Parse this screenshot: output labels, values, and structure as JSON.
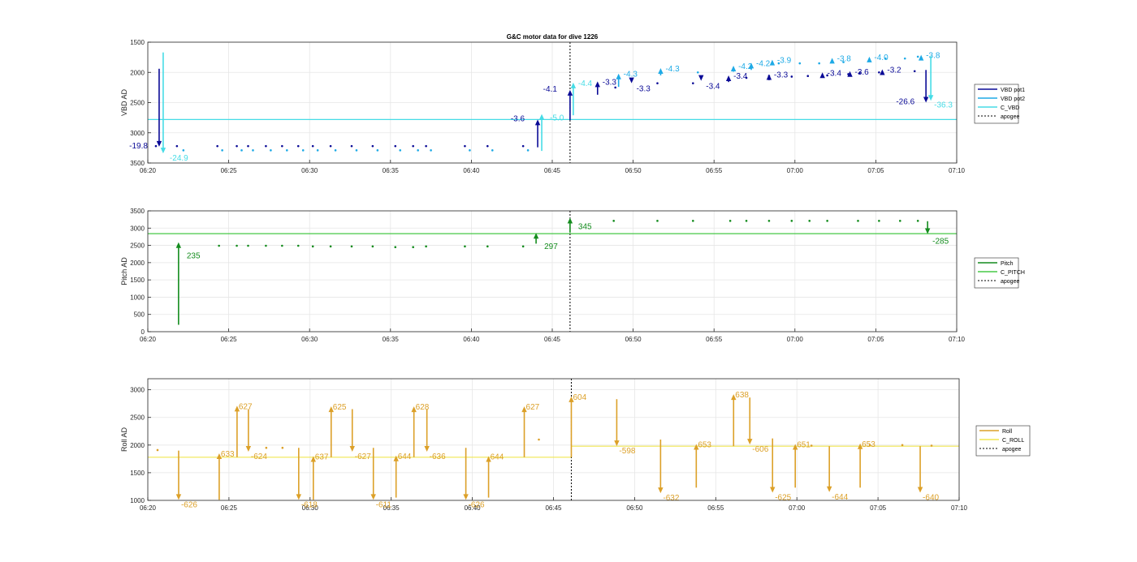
{
  "figure_title": "G&C motor data for dive 1226",
  "colors": {
    "vbd1": "#0a0a96",
    "vbd2": "#1eaae6",
    "cvbd": "#46dce6",
    "pitch": "#148c1e",
    "cpitch": "#46c846",
    "roll": "#dca028",
    "croll": "#f0e650",
    "apogee": "#000000"
  },
  "chart_data": [
    {
      "type": "scatter",
      "title": "G&C motor data for dive 1226",
      "ylabel": "VBD AD",
      "y_reversed": true,
      "ylim": [
        1500,
        3500
      ],
      "yticks": [
        "1500",
        "2000",
        "2500",
        "3000",
        "3500"
      ],
      "xlim": [
        "06:20",
        "07:10"
      ],
      "xticks": [
        "06:20",
        "06:25",
        "06:30",
        "06:35",
        "06:40",
        "06:45",
        "06:50",
        "06:55",
        "07:00",
        "07:05",
        "07:10"
      ],
      "grid": true,
      "legend": [
        "VBD pot1",
        "VBD pot2",
        "C_VBD",
        "apogee"
      ],
      "legend_position": "outside-right",
      "reference_lines": [
        {
          "name": "C_VBD",
          "y": 2780
        }
      ],
      "apogee_x": 26.1,
      "series": [
        {
          "name": "VBD pot1",
          "points": [
            [
              0.5,
              3220
            ],
            [
              1.8,
              3220
            ],
            [
              4.3,
              3220
            ],
            [
              5.5,
              3220
            ],
            [
              6.2,
              3220
            ],
            [
              7.3,
              3220
            ],
            [
              8.3,
              3220
            ],
            [
              9.3,
              3220
            ],
            [
              10.2,
              3220
            ],
            [
              11.3,
              3220
            ],
            [
              12.6,
              3220
            ],
            [
              13.9,
              3220
            ],
            [
              15.3,
              3220
            ],
            [
              16.4,
              3220
            ],
            [
              17.2,
              3220
            ],
            [
              19.6,
              3220
            ],
            [
              21.0,
              3220
            ],
            [
              23.2,
              3220
            ],
            [
              28.9,
              2250
            ],
            [
              31.5,
              2180
            ],
            [
              33.7,
              2180
            ],
            [
              35.9,
              2120
            ],
            [
              37.0,
              2090
            ],
            [
              38.4,
              2060
            ],
            [
              39.8,
              2070
            ],
            [
              40.8,
              2060
            ],
            [
              42.0,
              2050
            ],
            [
              43.3,
              2030
            ],
            [
              44.0,
              2010
            ],
            [
              45.2,
              2000
            ],
            [
              47.4,
              1980
            ]
          ]
        },
        {
          "name": "VBD pot2",
          "points": [
            [
              2.2,
              3290
            ],
            [
              4.6,
              3290
            ],
            [
              5.8,
              3290
            ],
            [
              6.5,
              3290
            ],
            [
              7.6,
              3290
            ],
            [
              8.6,
              3290
            ],
            [
              9.6,
              3290
            ],
            [
              10.5,
              3290
            ],
            [
              11.6,
              3290
            ],
            [
              12.9,
              3290
            ],
            [
              14.2,
              3290
            ],
            [
              15.6,
              3290
            ],
            [
              16.7,
              3290
            ],
            [
              17.5,
              3290
            ],
            [
              19.9,
              3290
            ],
            [
              21.3,
              3290
            ],
            [
              23.5,
              3290
            ],
            [
              39.0,
              1850
            ],
            [
              40.3,
              1850
            ],
            [
              41.5,
              1850
            ],
            [
              43.0,
              1830
            ],
            [
              44.6,
              1800
            ],
            [
              45.6,
              1770
            ],
            [
              46.8,
              1770
            ],
            [
              47.6,
              1740
            ],
            [
              34.0,
              2000
            ]
          ]
        }
      ],
      "moves": [
        {
          "series": "VBD pot1",
          "x": 0.7,
          "from": 1940,
          "to": 3230,
          "label": "-19.8"
        },
        {
          "series": "C_VBD",
          "x": 0.95,
          "from": 1670,
          "to": 3340,
          "label": "-24.9"
        },
        {
          "series": "VBD pot1",
          "x": 24.1,
          "from": 3240,
          "to": 2780,
          "label": "-3.6"
        },
        {
          "series": "C_VBD",
          "x": 24.35,
          "from": 3300,
          "to": 2690,
          "label": "-5.0"
        },
        {
          "series": "VBD pot1",
          "x": 26.1,
          "from": 2790,
          "to": 2290,
          "label": "-4.1"
        },
        {
          "series": "C_VBD",
          "x": 26.3,
          "from": 2710,
          "to": 2170,
          "label": "-4.4"
        },
        {
          "series": "VBD pot1",
          "x": 27.8,
          "from": 2370,
          "to": 2150,
          "label": "-3.3"
        },
        {
          "series": "VBD pot2",
          "x": 29.1,
          "from": 2240,
          "to": 2020,
          "label": "-4.3"
        },
        {
          "series": "VBD pot1",
          "x": 29.9,
          "from": 2180,
          "to": 2180,
          "label": "-3.3"
        },
        {
          "series": "VBD pot2",
          "x": 31.7,
          "from": 2050,
          "to": 1930,
          "label": "-4.3"
        },
        {
          "series": "VBD pot1",
          "x": 34.2,
          "from": 2140,
          "to": 2140,
          "label": "-3.4"
        },
        {
          "series": "VBD pot1",
          "x": 35.9,
          "from": 2160,
          "to": 2050,
          "label": "-3.4"
        },
        {
          "series": "VBD pot2",
          "x": 36.2,
          "from": 1990,
          "to": 1890,
          "label": "-4.2"
        },
        {
          "series": "VBD pot2",
          "x": 37.3,
          "from": 1960,
          "to": 1840,
          "label": "-4.2"
        },
        {
          "series": "VBD pot1",
          "x": 38.4,
          "from": 2130,
          "to": 2030,
          "label": "-3.3"
        },
        {
          "series": "VBD pot2",
          "x": 38.6,
          "from": 1880,
          "to": 1790,
          "label": "-3.9"
        },
        {
          "series": "VBD pot1",
          "x": 41.7,
          "from": 2080,
          "to": 2000,
          "label": "-3.4"
        },
        {
          "series": "VBD pot2",
          "x": 42.3,
          "from": 1840,
          "to": 1760,
          "label": "-3.8"
        },
        {
          "series": "VBD pot1",
          "x": 43.4,
          "from": 2060,
          "to": 1980,
          "label": "-3.6"
        },
        {
          "series": "VBD pot2",
          "x": 44.6,
          "from": 1820,
          "to": 1740,
          "label": "-4.0"
        },
        {
          "series": "VBD pot1",
          "x": 45.4,
          "from": 2030,
          "to": 1950,
          "label": "-3.2"
        },
        {
          "series": "VBD pot2",
          "x": 47.8,
          "from": 1790,
          "to": 1710,
          "label": "-3.8"
        },
        {
          "series": "VBD pot1",
          "x": 48.1,
          "from": 1960,
          "to": 2500,
          "label": "-26.6"
        },
        {
          "series": "C_VBD",
          "x": 48.4,
          "from": 1730,
          "to": 2470,
          "label": "-36.3"
        }
      ]
    },
    {
      "type": "scatter",
      "ylabel": "Pitch AD",
      "ylim": [
        0,
        3500
      ],
      "yticks": [
        "0",
        "500",
        "1000",
        "1500",
        "2000",
        "2500",
        "3000",
        "3500"
      ],
      "xlim": [
        "06:20",
        "07:10"
      ],
      "xticks": [
        "06:20",
        "06:25",
        "06:30",
        "06:35",
        "06:40",
        "06:45",
        "06:50",
        "06:55",
        "07:00",
        "07:05",
        "07:10"
      ],
      "grid": true,
      "legend": [
        "Pitch",
        "C_PITCH",
        "apogee"
      ],
      "legend_position": "outside-right",
      "reference_lines": [
        {
          "name": "C_PITCH",
          "y": 2840
        }
      ],
      "apogee_x": 26.1,
      "series": [
        {
          "name": "Pitch",
          "points": [
            [
              4.4,
              2490
            ],
            [
              5.5,
              2490
            ],
            [
              6.2,
              2490
            ],
            [
              7.3,
              2490
            ],
            [
              8.3,
              2490
            ],
            [
              9.3,
              2490
            ],
            [
              10.2,
              2470
            ],
            [
              11.3,
              2470
            ],
            [
              12.6,
              2470
            ],
            [
              13.9,
              2470
            ],
            [
              15.3,
              2450
            ],
            [
              16.4,
              2450
            ],
            [
              17.2,
              2470
            ],
            [
              19.6,
              2470
            ],
            [
              21.0,
              2470
            ],
            [
              23.2,
              2470
            ],
            [
              28.8,
              3210
            ],
            [
              31.5,
              3210
            ],
            [
              33.7,
              3210
            ],
            [
              36.0,
              3210
            ],
            [
              37.0,
              3210
            ],
            [
              38.4,
              3210
            ],
            [
              39.8,
              3210
            ],
            [
              40.9,
              3210
            ],
            [
              42.0,
              3210
            ],
            [
              43.9,
              3210
            ],
            [
              45.2,
              3210
            ],
            [
              46.5,
              3210
            ],
            [
              47.6,
              3210
            ]
          ]
        }
      ],
      "moves": [
        {
          "series": "Pitch",
          "x": 1.9,
          "from": 200,
          "to": 2590,
          "label": "235"
        },
        {
          "series": "Pitch",
          "x": 24.0,
          "from": 2550,
          "to": 2860,
          "label": "297"
        },
        {
          "series": "Pitch",
          "x": 26.1,
          "from": 2870,
          "to": 3300,
          "label": "345"
        },
        {
          "series": "Pitch",
          "x": 48.2,
          "from": 3200,
          "to": 2830,
          "label": "-285"
        }
      ]
    },
    {
      "type": "scatter",
      "ylabel": "Roll AD",
      "ylim": [
        1000,
        3200
      ],
      "yticks": [
        "1000",
        "1500",
        "2000",
        "2500",
        "3000"
      ],
      "xlim": [
        "06:20",
        "07:10"
      ],
      "xticks": [
        "06:20",
        "06:25",
        "06:30",
        "06:35",
        "06:40",
        "06:45",
        "06:50",
        "06:55",
        "07:00",
        "07:05",
        "07:10"
      ],
      "grid": true,
      "legend": [
        "Roll",
        "C_ROLL",
        "apogee"
      ],
      "legend_position": "outside-right",
      "reference_lines": [
        {
          "name": "C_ROLL",
          "y": 1780,
          "x_end": 26.1
        },
        {
          "name": "C_ROLL",
          "y": 1980,
          "x_start": 26.1
        }
      ],
      "apogee_x": 26.1,
      "series": [
        {
          "name": "Roll",
          "points": [
            [
              0.6,
              1910
            ],
            [
              7.3,
              1950
            ],
            [
              8.3,
              1950
            ],
            [
              24.1,
              2100
            ],
            [
              40.9,
              1990
            ],
            [
              44.5,
              2000
            ],
            [
              46.5,
              2000
            ],
            [
              48.3,
              1990
            ]
          ]
        }
      ],
      "moves": [
        {
          "series": "Roll",
          "x": 1.9,
          "from": 1900,
          "to": 1010,
          "label": "-626"
        },
        {
          "series": "Roll",
          "x": 4.4,
          "from": 1010,
          "to": 1850,
          "label": "633"
        },
        {
          "series": "Roll",
          "x": 5.5,
          "from": 1780,
          "to": 2710,
          "label": "627"
        },
        {
          "series": "Roll",
          "x": 6.2,
          "from": 2650,
          "to": 1880,
          "label": "-624"
        },
        {
          "series": "Roll",
          "x": 9.3,
          "from": 1950,
          "to": 1010,
          "label": "-618"
        },
        {
          "series": "Roll",
          "x": 10.2,
          "from": 1010,
          "to": 1800,
          "label": "637"
        },
        {
          "series": "Roll",
          "x": 11.3,
          "from": 1780,
          "to": 2700,
          "label": "625"
        },
        {
          "series": "Roll",
          "x": 12.6,
          "from": 2650,
          "to": 1880,
          "label": "-627"
        },
        {
          "series": "Roll",
          "x": 13.9,
          "from": 1950,
          "to": 1010,
          "label": "-611"
        },
        {
          "series": "Roll",
          "x": 15.3,
          "from": 1050,
          "to": 1810,
          "label": "644"
        },
        {
          "series": "Roll",
          "x": 16.4,
          "from": 1780,
          "to": 2700,
          "label": "628"
        },
        {
          "series": "Roll",
          "x": 17.2,
          "from": 2650,
          "to": 1880,
          "label": "-636"
        },
        {
          "series": "Roll",
          "x": 19.6,
          "from": 1950,
          "to": 1010,
          "label": "-626"
        },
        {
          "series": "Roll",
          "x": 21.0,
          "from": 1050,
          "to": 1800,
          "label": "644"
        },
        {
          "series": "Roll",
          "x": 23.2,
          "from": 1780,
          "to": 2700,
          "label": "627"
        },
        {
          "series": "Roll",
          "x": 26.1,
          "from": 1780,
          "to": 2880,
          "label": "604"
        },
        {
          "series": "Roll",
          "x": 28.9,
          "from": 2830,
          "to": 1980,
          "label": "-598"
        },
        {
          "series": "Roll",
          "x": 31.6,
          "from": 2100,
          "to": 1130,
          "label": "-632"
        },
        {
          "series": "Roll",
          "x": 33.8,
          "from": 1230,
          "to": 2020,
          "label": "653"
        },
        {
          "series": "Roll",
          "x": 36.1,
          "from": 1980,
          "to": 2920,
          "label": "638"
        },
        {
          "series": "Roll",
          "x": 37.1,
          "from": 2860,
          "to": 2010,
          "label": "-606"
        },
        {
          "series": "Roll",
          "x": 38.5,
          "from": 2120,
          "to": 1140,
          "label": "-625"
        },
        {
          "series": "Roll",
          "x": 39.9,
          "from": 1230,
          "to": 2020,
          "label": "651"
        },
        {
          "series": "Roll",
          "x": 42.0,
          "from": 1980,
          "to": 1150,
          "label": "-644"
        },
        {
          "series": "Roll",
          "x": 43.9,
          "from": 1230,
          "to": 2030,
          "label": "653"
        },
        {
          "series": "Roll",
          "x": 47.6,
          "from": 1980,
          "to": 1140,
          "label": "-640"
        }
      ]
    }
  ]
}
